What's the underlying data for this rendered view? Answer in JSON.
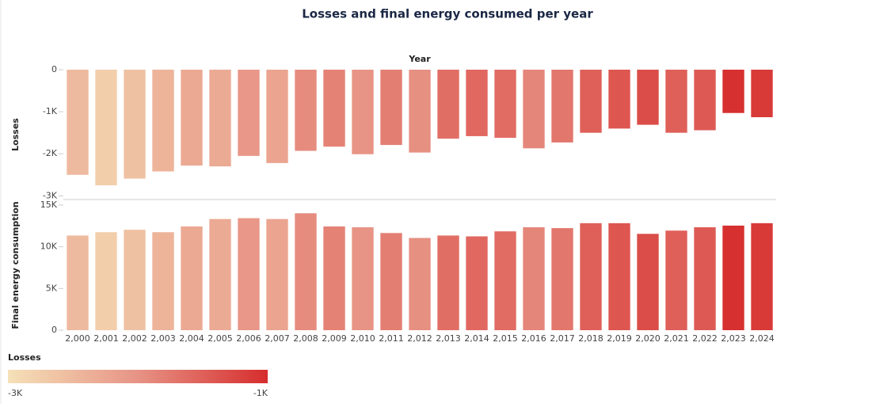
{
  "chart_data": [
    {
      "type": "bar",
      "title": "Losses and final energy consumed per year",
      "x_label": "Year",
      "y_label": "Losses",
      "categories": [
        "2,000",
        "2,001",
        "2,002",
        "2,003",
        "2,004",
        "2,005",
        "2,006",
        "2,007",
        "2,008",
        "2,009",
        "2,010",
        "2,011",
        "2,012",
        "2,013",
        "2,014",
        "2,015",
        "2,016",
        "2,017",
        "2,018",
        "2,019",
        "2,020",
        "2,021",
        "2,022",
        "2,023",
        "2,024"
      ],
      "values": [
        -2500,
        -2750,
        -2590,
        -2420,
        -2280,
        -2300,
        -2050,
        -2220,
        -1930,
        -1830,
        -2010,
        -1790,
        -1970,
        -1640,
        -1580,
        -1620,
        -1870,
        -1730,
        -1500,
        -1400,
        -1310,
        -1500,
        -1440,
        -1030,
        -1130
      ],
      "ylim": [
        -3050,
        0
      ],
      "yticks": [
        0,
        {
          "value": -1000,
          "label": "-1K"
        },
        {
          "value": -2000,
          "label": "-2K"
        },
        {
          "value": -3000,
          "label": "-3K"
        }
      ],
      "color_scale": {
        "title": "Losses",
        "colors": [
          "#f5e1b8",
          "#e79385",
          "#d62d2d"
        ],
        "min": {
          "value": -3000,
          "label": "-3K"
        },
        "max": {
          "value": -1000,
          "label": "-1K"
        }
      }
    },
    {
      "type": "bar",
      "y_label": "Final energy consumption",
      "categories": [
        "2,000",
        "2,001",
        "2,002",
        "2,003",
        "2,004",
        "2,005",
        "2,006",
        "2,007",
        "2,008",
        "2,009",
        "2,010",
        "2,011",
        "2,012",
        "2,013",
        "2,014",
        "2,015",
        "2,016",
        "2,017",
        "2,018",
        "2,019",
        "2,020",
        "2,021",
        "2,022",
        "2,023",
        "2,024"
      ],
      "values": [
        11350,
        11750,
        12040,
        11750,
        12440,
        13330,
        13430,
        13330,
        14020,
        12440,
        12340,
        11650,
        11060,
        11350,
        11250,
        11850,
        12340,
        12240,
        12830,
        12830,
        11550,
        11940,
        12340,
        12540,
        12830
      ],
      "ylim": [
        0,
        15000
      ],
      "yticks": [
        0,
        {
          "value": 5000,
          "label": "5K"
        },
        {
          "value": 10000,
          "label": "10K"
        },
        {
          "value": 15000,
          "label": "15K"
        }
      ]
    }
  ]
}
